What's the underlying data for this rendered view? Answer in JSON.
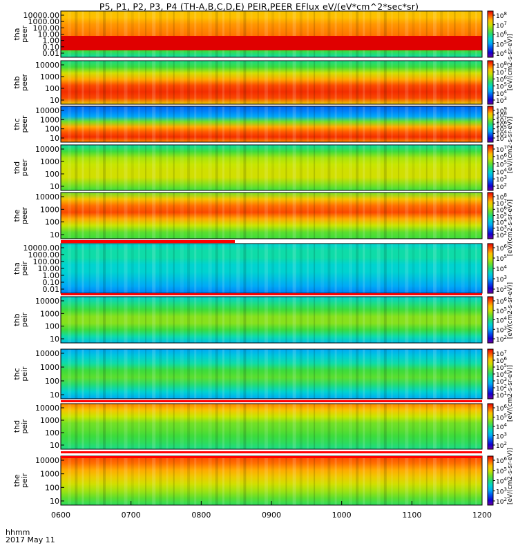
{
  "title": "P5, P1, P2, P3, P4 (TH-A,B,C,D,E) PEIR,PEER EFlux eV/(eV*cm^2*sec*sr)",
  "footer": {
    "time_label": "hhmm",
    "date_label": "2017 May 11"
  },
  "colorbar_label": "[eV/(cm2-s-sr-eV)]",
  "chart_data": [
    {
      "type": "heatmap",
      "panel": "tha peer",
      "ylabel": [
        "tha",
        "peer"
      ],
      "yscale": "log",
      "ylim": [
        0.01,
        20000
      ],
      "yticks": [
        "10000.00",
        "1000.00",
        "100.00",
        "10.00",
        "1.00",
        "0.10",
        "0.01"
      ],
      "cbar_ticks": [
        "10^8",
        "10^7",
        "10^6",
        "10^5",
        "10^4"
      ],
      "red_band_below": 10
    },
    {
      "type": "heatmap",
      "panel": "thb peer",
      "ylabel": [
        "thb",
        "peer"
      ],
      "yscale": "log",
      "ylim": [
        7,
        20000
      ],
      "yticks": [
        "10000",
        "1000",
        "100",
        "10"
      ],
      "cbar_ticks": [
        "10^8",
        "10^7",
        "10^6",
        "10^5",
        "10^4",
        "10^3"
      ]
    },
    {
      "type": "heatmap",
      "panel": "thc peer",
      "ylabel": [
        "thc",
        "peer"
      ],
      "yscale": "log",
      "ylim": [
        7,
        20000
      ],
      "yticks": [
        "10000",
        "1000",
        "100",
        "10"
      ],
      "cbar_ticks": [
        "10^9",
        "10^8",
        "10^7",
        "10^6",
        "10^5",
        "10^4",
        "10^3"
      ]
    },
    {
      "type": "heatmap",
      "panel": "thd peer",
      "ylabel": [
        "thd",
        "peer"
      ],
      "yscale": "log",
      "ylim": [
        7,
        20000
      ],
      "yticks": [
        "10000",
        "1000",
        "100",
        "10"
      ],
      "cbar_ticks": [
        "10^7",
        "10^6",
        "10^5",
        "10^4",
        "10^3",
        "10^2"
      ]
    },
    {
      "type": "heatmap",
      "panel": "the peer",
      "ylabel": [
        "the",
        "peer"
      ],
      "yscale": "log",
      "ylim": [
        7,
        20000
      ],
      "yticks": [
        "10000",
        "1000",
        "100",
        "10"
      ],
      "cbar_ticks": [
        "10^8",
        "10^7",
        "10^6",
        "10^5",
        "10^4",
        "10^3",
        "10^2"
      ]
    },
    {
      "type": "heatmap",
      "panel": "tha peir",
      "ylabel": [
        "tha",
        "peir"
      ],
      "yscale": "log",
      "ylim": [
        0.01,
        20000
      ],
      "yticks": [
        "10000.00",
        "1000.00",
        "100.00",
        "10.00",
        "1.00",
        "0.10",
        "0.01"
      ],
      "cbar_ticks": [
        "10^6",
        "10^5",
        "10^4",
        "10^3",
        "10^2"
      ]
    },
    {
      "type": "heatmap",
      "panel": "thb peir",
      "ylabel": [
        "thb",
        "peir"
      ],
      "yscale": "log",
      "ylim": [
        7,
        20000
      ],
      "yticks": [
        "10000",
        "1000",
        "100",
        "10"
      ],
      "cbar_ticks": [
        "10^6",
        "10^5",
        "10^4",
        "10^3",
        "10^2"
      ]
    },
    {
      "type": "heatmap",
      "panel": "thc peir",
      "ylabel": [
        "thc",
        "peir"
      ],
      "yscale": "log",
      "ylim": [
        7,
        20000
      ],
      "yticks": [
        "10000",
        "1000",
        "100",
        "10"
      ],
      "cbar_ticks": [
        "10^7",
        "10^6",
        "10^5",
        "10^4",
        "10^3",
        "10^2",
        "10^1"
      ]
    },
    {
      "type": "heatmap",
      "panel": "thd peir",
      "ylabel": [
        "thd",
        "peir"
      ],
      "yscale": "log",
      "ylim": [
        7,
        20000
      ],
      "yticks": [
        "10000",
        "1000",
        "100",
        "10"
      ],
      "cbar_ticks": [
        "10^6",
        "10^5",
        "10^4",
        "10^3",
        "10^2"
      ]
    },
    {
      "type": "heatmap",
      "panel": "the peir",
      "ylabel": [
        "the",
        "peir"
      ],
      "yscale": "log",
      "ylim": [
        7,
        20000
      ],
      "yticks": [
        "10000",
        "1000",
        "100",
        "10"
      ],
      "cbar_ticks": [
        "10^6",
        "10^5",
        "10^4",
        "10^3",
        "10^2"
      ]
    }
  ],
  "x_axis": {
    "ticks": [
      "0600",
      "0700",
      "0800",
      "0900",
      "1000",
      "1100",
      "1200"
    ],
    "range": [
      "0600",
      "1200"
    ]
  }
}
